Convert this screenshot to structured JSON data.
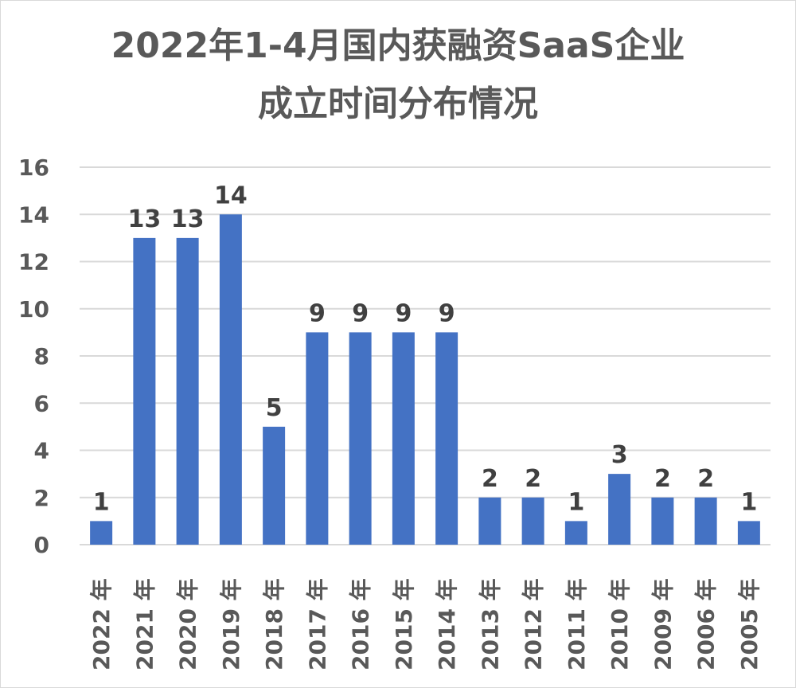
{
  "chart_data": {
    "type": "bar",
    "title_line1": "2022年1-4月国内获融资SaaS企业",
    "title_line2": "成立时间分布情况",
    "categories": [
      "2022 年",
      "2021 年",
      "2020 年",
      "2019 年",
      "2018 年",
      "2017 年",
      "2016 年",
      "2015 年",
      "2014 年",
      "2013 年",
      "2012 年",
      "2011 年",
      "2010 年",
      "2009 年",
      "2006 年",
      "2005 年"
    ],
    "values": [
      1,
      13,
      13,
      14,
      5,
      9,
      9,
      9,
      9,
      2,
      2,
      1,
      3,
      2,
      2,
      1
    ],
    "ylim": [
      0,
      16
    ],
    "yticks": [
      0,
      2,
      4,
      6,
      8,
      10,
      12,
      14,
      16
    ],
    "grid": true,
    "legend": "none",
    "bar_color": "#4472c4",
    "grid_color": "#d9d9d9",
    "xlabel": "",
    "ylabel": ""
  }
}
